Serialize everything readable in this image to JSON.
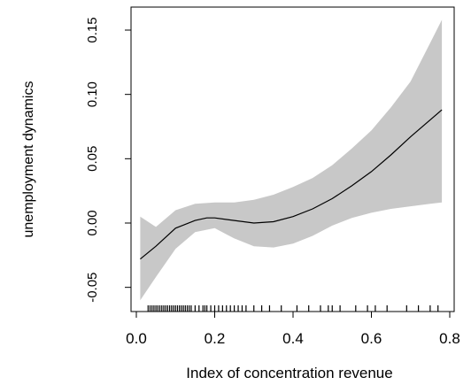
{
  "chart_data": {
    "type": "line",
    "xlabel": "Index of concentration revenue",
    "ylabel": "unemployment dynamics",
    "xlim": [
      0.0,
      0.8
    ],
    "ylim": [
      -0.065,
      0.165
    ],
    "x_ticks": [
      "0.0",
      "0.2",
      "0.4",
      "0.6",
      "0.8"
    ],
    "x_tick_values": [
      0.0,
      0.2,
      0.4,
      0.6,
      0.8
    ],
    "y_ticks": [
      "-0.05",
      "0.00",
      "0.05",
      "0.10",
      "0.15"
    ],
    "y_tick_values": [
      -0.05,
      0.0,
      0.05,
      0.1,
      0.15
    ],
    "colors": {
      "line": "#000000",
      "band": "#c8c8c8",
      "axis": "#000000"
    },
    "series": [
      {
        "x": [
          0.01,
          0.05,
          0.1,
          0.15,
          0.18,
          0.2,
          0.25,
          0.3,
          0.35,
          0.4,
          0.45,
          0.5,
          0.55,
          0.6,
          0.65,
          0.7,
          0.78
        ],
        "y": [
          -0.028,
          -0.018,
          -0.004,
          0.002,
          0.004,
          0.004,
          0.002,
          0.0,
          0.001,
          0.005,
          0.011,
          0.019,
          0.029,
          0.04,
          0.053,
          0.067,
          0.088
        ]
      }
    ],
    "confidence_band": {
      "x": [
        0.01,
        0.05,
        0.1,
        0.15,
        0.2,
        0.25,
        0.3,
        0.35,
        0.4,
        0.45,
        0.5,
        0.55,
        0.6,
        0.65,
        0.7,
        0.75,
        0.78
      ],
      "lower": [
        -0.06,
        -0.042,
        -0.02,
        -0.007,
        -0.004,
        -0.012,
        -0.018,
        -0.019,
        -0.016,
        -0.01,
        -0.002,
        0.004,
        0.008,
        0.011,
        0.013,
        0.015,
        0.016
      ],
      "upper": [
        0.005,
        -0.003,
        0.01,
        0.015,
        0.016,
        0.016,
        0.018,
        0.022,
        0.028,
        0.035,
        0.045,
        0.058,
        0.072,
        0.09,
        0.11,
        0.14,
        0.158
      ]
    },
    "rug": [
      0.03,
      0.035,
      0.04,
      0.045,
      0.05,
      0.055,
      0.06,
      0.065,
      0.07,
      0.075,
      0.08,
      0.085,
      0.09,
      0.095,
      0.1,
      0.105,
      0.11,
      0.115,
      0.12,
      0.125,
      0.13,
      0.135,
      0.14,
      0.15,
      0.16,
      0.17,
      0.175,
      0.18,
      0.19,
      0.2,
      0.21,
      0.22,
      0.23,
      0.24,
      0.25,
      0.26,
      0.27,
      0.28,
      0.3,
      0.32,
      0.34,
      0.37,
      0.41,
      0.44,
      0.47,
      0.49,
      0.5,
      0.52,
      0.56,
      0.59,
      0.61,
      0.64,
      0.69,
      0.72,
      0.75,
      0.77
    ],
    "grid": false,
    "legend": "none"
  }
}
